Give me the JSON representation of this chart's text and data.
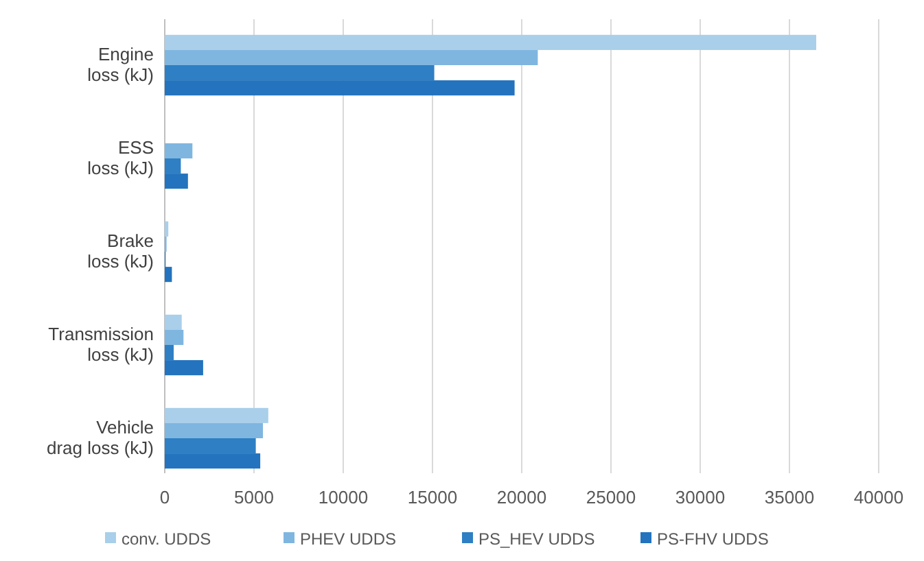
{
  "chart_data": {
    "type": "bar",
    "orientation": "horizontal",
    "categories": [
      "Engine\nloss (kJ)",
      "ESS\nloss (kJ)",
      "Brake\nloss (kJ)",
      "Transmission\nloss (kJ)",
      "Vehicle\ndrag loss (kJ)"
    ],
    "series": [
      {
        "name": "conv. UDDS",
        "color": "#a9cfea",
        "values": [
          36500,
          0,
          200,
          950,
          5800
        ]
      },
      {
        "name": "PHEV UDDS",
        "color": "#7fb6e0",
        "values": [
          20900,
          1550,
          100,
          1050,
          5500
        ]
      },
      {
        "name": "PS_HEV UDDS",
        "color": "#2e7fc4",
        "values": [
          15100,
          900,
          50,
          500,
          5100
        ]
      },
      {
        "name": "PS-FHV UDDS",
        "color": "#2373be",
        "values": [
          19600,
          1300,
          400,
          2150,
          5350
        ]
      }
    ],
    "xlim": [
      0,
      40000
    ],
    "xticks": [
      0,
      5000,
      10000,
      15000,
      20000,
      25000,
      30000,
      35000,
      40000
    ],
    "grid": "x",
    "legend": "bottom"
  }
}
